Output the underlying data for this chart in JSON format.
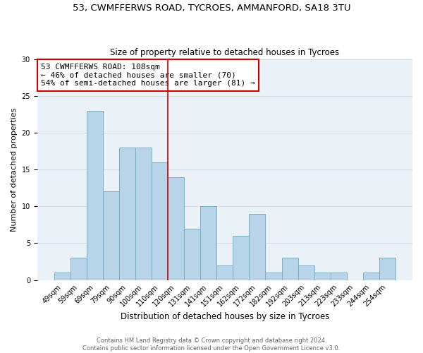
{
  "title": "53, CWMFFERWS ROAD, TYCROES, AMMANFORD, SA18 3TU",
  "subtitle": "Size of property relative to detached houses in Tycroes",
  "xlabel": "Distribution of detached houses by size in Tycroes",
  "ylabel": "Number of detached properties",
  "bar_labels": [
    "49sqm",
    "59sqm",
    "69sqm",
    "79sqm",
    "90sqm",
    "100sqm",
    "110sqm",
    "120sqm",
    "131sqm",
    "141sqm",
    "151sqm",
    "162sqm",
    "172sqm",
    "182sqm",
    "192sqm",
    "203sqm",
    "213sqm",
    "223sqm",
    "233sqm",
    "244sqm",
    "254sqm"
  ],
  "bar_values": [
    1,
    3,
    23,
    12,
    18,
    18,
    16,
    14,
    7,
    10,
    2,
    6,
    9,
    1,
    3,
    2,
    1,
    1,
    0,
    1,
    3
  ],
  "bar_color": "#b8d4e8",
  "bar_edge_color": "#7aaec8",
  "highlight_x_label": "110sqm",
  "highlight_line_color": "#cc0000",
  "ylim": [
    0,
    30
  ],
  "yticks": [
    0,
    5,
    10,
    15,
    20,
    25,
    30
  ],
  "annotation_title": "53 CWMFFERWS ROAD: 108sqm",
  "annotation_line1": "← 46% of detached houses are smaller (70)",
  "annotation_line2": "54% of semi-detached houses are larger (81) →",
  "footer_line1": "Contains HM Land Registry data © Crown copyright and database right 2024.",
  "footer_line2": "Contains public sector information licensed under the Open Government Licence v3.0.",
  "title_fontsize": 9.5,
  "subtitle_fontsize": 8.5,
  "xlabel_fontsize": 8.5,
  "ylabel_fontsize": 8,
  "tick_fontsize": 7,
  "footer_fontsize": 6,
  "annotation_fontsize": 8
}
